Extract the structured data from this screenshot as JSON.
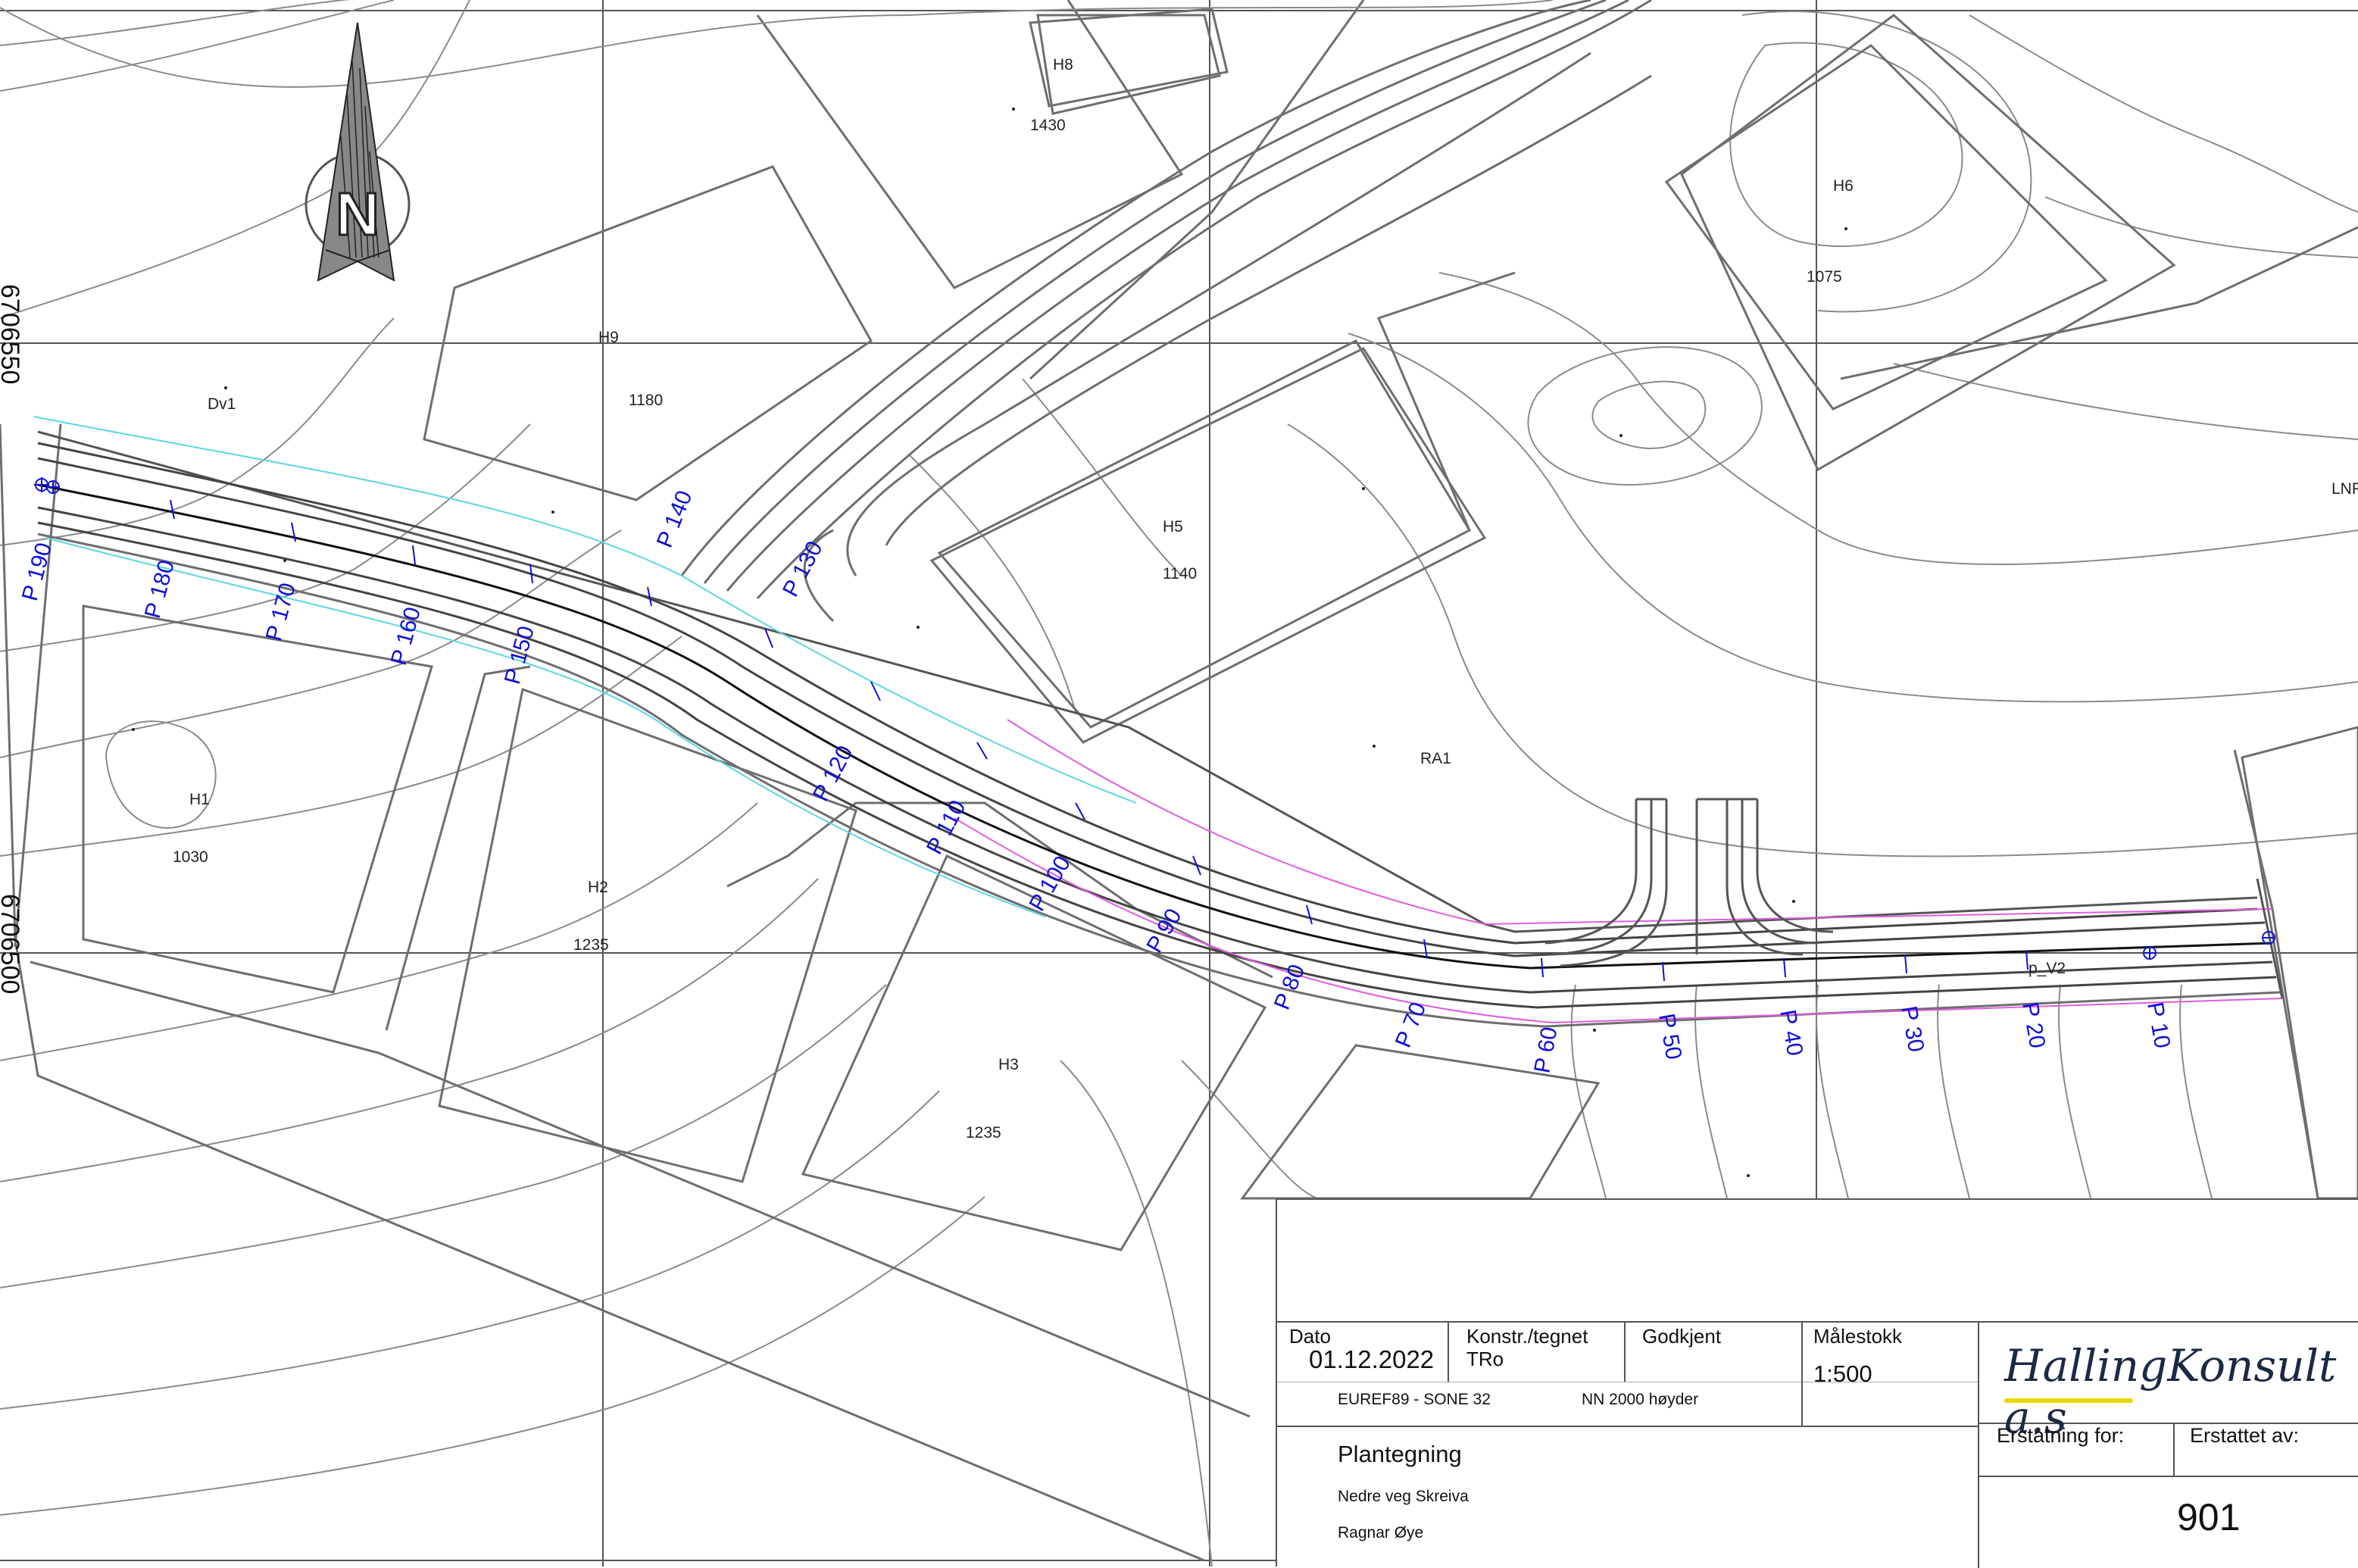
{
  "north_arrow": {
    "letter": "N"
  },
  "coordinates": {
    "northing_top": "6706550",
    "northing_bottom": "6706500"
  },
  "plots": [
    {
      "id": "H8",
      "number": "1430"
    },
    {
      "id": "H6",
      "number": "1075"
    },
    {
      "id": "H9",
      "number": "1180"
    },
    {
      "id": "Dv1",
      "number": ""
    },
    {
      "id": "H5",
      "number": "1140"
    },
    {
      "id": "RA1",
      "number": ""
    },
    {
      "id": "H1",
      "number": "1030"
    },
    {
      "id": "H2",
      "number": "1235"
    },
    {
      "id": "H3",
      "number": "1235"
    },
    {
      "id": "LNF",
      "number": ""
    }
  ],
  "profiles": [
    "P 10",
    "P 20",
    "P 30",
    "P 40",
    "P 50",
    "P 60",
    "P 70",
    "P 80",
    "P 90",
    "P 100",
    "P 110",
    "P 120",
    "P 130",
    "P 140",
    "P 150",
    "P 160",
    "P 170",
    "P 180",
    "P 190"
  ],
  "point_label": "p_V2",
  "title_block": {
    "date_label": "Dato",
    "date_value": "01.12.2022",
    "drawn_label": "Konstr./tegnet",
    "drawn_value": "TRo",
    "approved_label": "Godkjent",
    "scale_label": "Målestokk",
    "scale_value": "1:500",
    "coord_system": "EUREF89 - SONE 32",
    "height_system": "NN 2000 høyder",
    "drawing_title": "Plantegning",
    "project": "Nedre veg Skreiva",
    "client": "Ragnar Øye",
    "company_logo": "HallingKonsult a.s",
    "replaces_label": "Erstatning for:",
    "replaced_by_label": "Erstattet av:",
    "drawing_number": "901"
  },
  "colors": {
    "profile_text": "#1010d8",
    "road_edge_cyan": "#5ed6e0",
    "road_edge_magenta": "#e05ce0",
    "grid": "#555555",
    "contour": "#8a8a8a"
  }
}
